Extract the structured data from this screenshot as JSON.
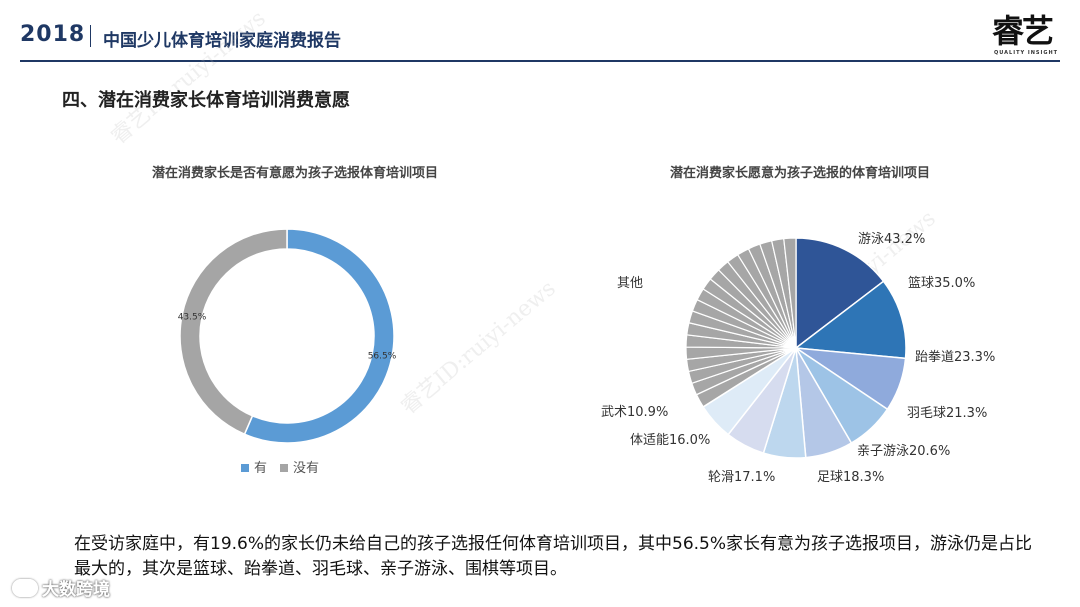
{
  "header": {
    "year": "2018",
    "report_title": "中国少儿体育培训家庭消费报告",
    "logo_text": "睿艺",
    "logo_sub": "QUALITY  INSIGHT"
  },
  "section_title": "四、潜在消费家长体育培训消费意愿",
  "colors": {
    "brand": "#1f3864",
    "yes": "#5b9bd5",
    "no": "#a5a5a5"
  },
  "chart_data": [
    {
      "type": "pie",
      "title": "潜在消费家长是否有意愿为孩子选报体育培训项目",
      "labels": [
        "有",
        "没有"
      ],
      "values": [
        56.5,
        43.5
      ],
      "value_labels": [
        "56.5%",
        "43.5%"
      ],
      "colors": [
        "#5b9bd5",
        "#a5a5a5"
      ],
      "donut": true,
      "legend": "bottom"
    },
    {
      "type": "pie",
      "title": "潜在消费家长愿意为孩子选报的体育培训项目",
      "labels": [
        "游泳",
        "篮球",
        "跆拳道",
        "羽毛球",
        "亲子游泳",
        "足球",
        "轮滑",
        "体适能",
        "武术"
      ],
      "values": [
        43.2,
        35.0,
        23.3,
        21.3,
        20.6,
        18.3,
        17.1,
        16.0,
        10.9
      ],
      "value_labels": [
        "游泳43.2%",
        "篮球35.0%",
        "跆拳道23.3%",
        "羽毛球21.3%",
        "亲子游泳20.6%",
        "足球18.3%",
        "轮滑17.1%",
        "体适能16.0%",
        "武术10.9%"
      ],
      "colors": [
        "#2f5597",
        "#2e75b6",
        "#8faadc",
        "#9dc3e6",
        "#b4c7e7",
        "#bdd7ee",
        "#d6dcef",
        "#deebf7",
        "#a6a6a6"
      ],
      "other_label": "其他",
      "other_slices": 18,
      "other_color": "#a6a6a6"
    }
  ],
  "summary": "在受访家庭中，有19.6%的家长仍未给自己的孩子选报任何体育培训项目，其中56.5%家长有意为孩子选报项目，游泳仍是占比最大的，其次是篮球、跆拳道、羽毛球、亲子游泳、围棋等项目。",
  "corner_watermark": "大数跨境"
}
